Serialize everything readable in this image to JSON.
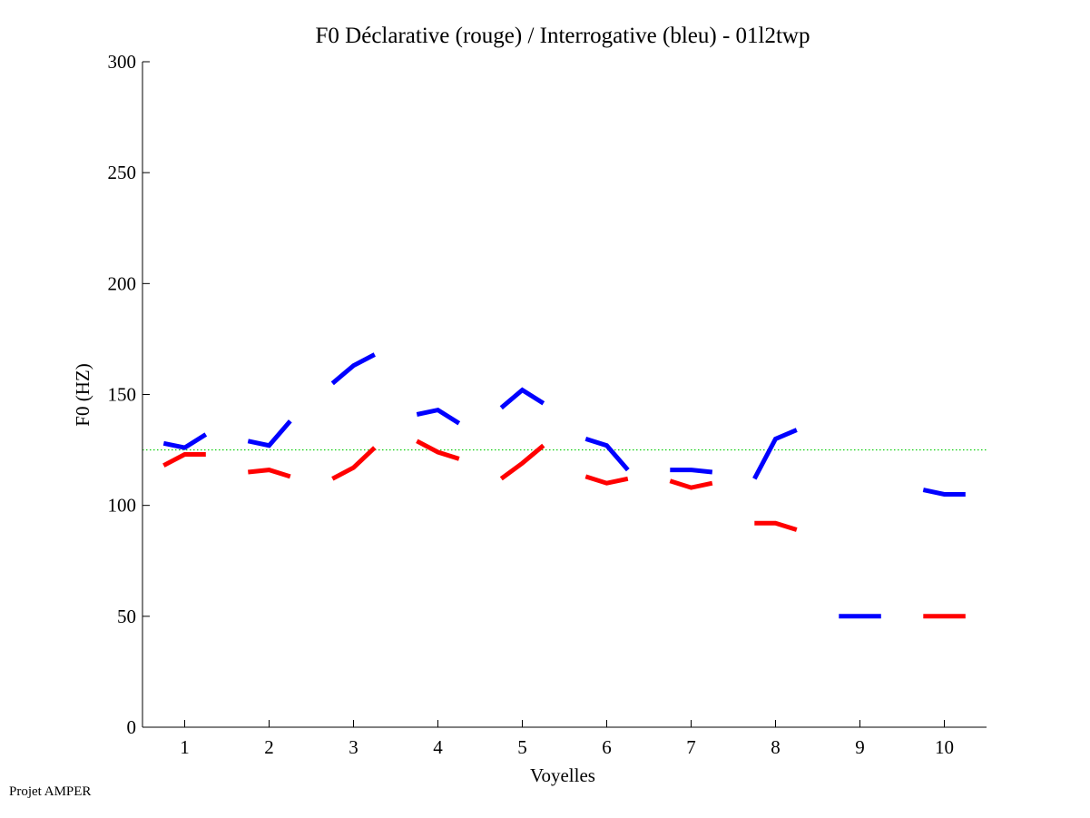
{
  "chart_data": {
    "type": "line",
    "title": "F0 Déclarative (rouge) / Interrogative (bleu) - 01l2twp",
    "xlabel": "Voyelles",
    "ylabel": "F0 (HZ)",
    "xlim": [
      0.5,
      10.5
    ],
    "ylim": [
      0,
      300
    ],
    "xticks": [
      1,
      2,
      3,
      4,
      5,
      6,
      7,
      8,
      9,
      10
    ],
    "xtick_labels": [
      "1",
      "2",
      "3",
      "4",
      "5",
      "6",
      "7",
      "8",
      "9",
      "10"
    ],
    "yticks": [
      0,
      50,
      100,
      150,
      200,
      250,
      300
    ],
    "ytick_labels": [
      "0",
      "50",
      "100",
      "150",
      "200",
      "250",
      "300"
    ],
    "reference_line": {
      "y": 125,
      "color": "#00cc00",
      "style": "dotted"
    },
    "series": [
      {
        "color": "#0000ff",
        "segments": [
          {
            "vowel": 1,
            "x": [
              0.75,
              1.0,
              1.25
            ],
            "y": [
              128,
              126,
              132
            ]
          },
          {
            "vowel": 2,
            "x": [
              1.75,
              2.0,
              2.25
            ],
            "y": [
              129,
              127,
              138
            ]
          },
          {
            "vowel": 3,
            "x": [
              2.75,
              3.0,
              3.25
            ],
            "y": [
              155,
              163,
              168
            ]
          },
          {
            "vowel": 4,
            "x": [
              3.75,
              4.0,
              4.25
            ],
            "y": [
              141,
              143,
              137
            ]
          },
          {
            "vowel": 5,
            "x": [
              4.75,
              5.0,
              5.25
            ],
            "y": [
              144,
              152,
              146
            ]
          },
          {
            "vowel": 6,
            "x": [
              5.75,
              6.0,
              6.25
            ],
            "y": [
              130,
              127,
              116
            ]
          },
          {
            "vowel": 7,
            "x": [
              6.75,
              7.0,
              7.25
            ],
            "y": [
              116,
              116,
              115
            ]
          },
          {
            "vowel": 8,
            "x": [
              7.75,
              8.0,
              8.25
            ],
            "y": [
              112,
              130,
              134
            ]
          },
          {
            "vowel": 9,
            "x": [
              8.75,
              9.0,
              9.25
            ],
            "y": [
              50,
              50,
              50
            ]
          },
          {
            "vowel": 10,
            "x": [
              9.75,
              10.0,
              10.25
            ],
            "y": [
              107,
              105,
              105
            ]
          }
        ]
      },
      {
        "color": "#ff0000",
        "segments": [
          {
            "vowel": 1,
            "x": [
              0.75,
              1.0,
              1.25
            ],
            "y": [
              118,
              123,
              123
            ]
          },
          {
            "vowel": 2,
            "x": [
              1.75,
              2.0,
              2.25
            ],
            "y": [
              115,
              116,
              113
            ]
          },
          {
            "vowel": 3,
            "x": [
              2.75,
              3.0,
              3.25
            ],
            "y": [
              112,
              117,
              126
            ]
          },
          {
            "vowel": 4,
            "x": [
              3.75,
              4.0,
              4.25
            ],
            "y": [
              129,
              124,
              121
            ]
          },
          {
            "vowel": 5,
            "x": [
              4.75,
              5.0,
              5.25
            ],
            "y": [
              112,
              119,
              127
            ]
          },
          {
            "vowel": 6,
            "x": [
              5.75,
              6.0,
              6.25
            ],
            "y": [
              113,
              110,
              112
            ]
          },
          {
            "vowel": 7,
            "x": [
              6.75,
              7.0,
              7.25
            ],
            "y": [
              111,
              108,
              110
            ]
          },
          {
            "vowel": 8,
            "x": [
              7.75,
              8.0,
              8.25
            ],
            "y": [
              92,
              92,
              89
            ]
          },
          {
            "vowel": 10,
            "x": [
              9.75,
              10.0,
              10.25
            ],
            "y": [
              50,
              50,
              50
            ]
          }
        ]
      }
    ]
  },
  "footer": {
    "label": "Projet AMPER"
  }
}
